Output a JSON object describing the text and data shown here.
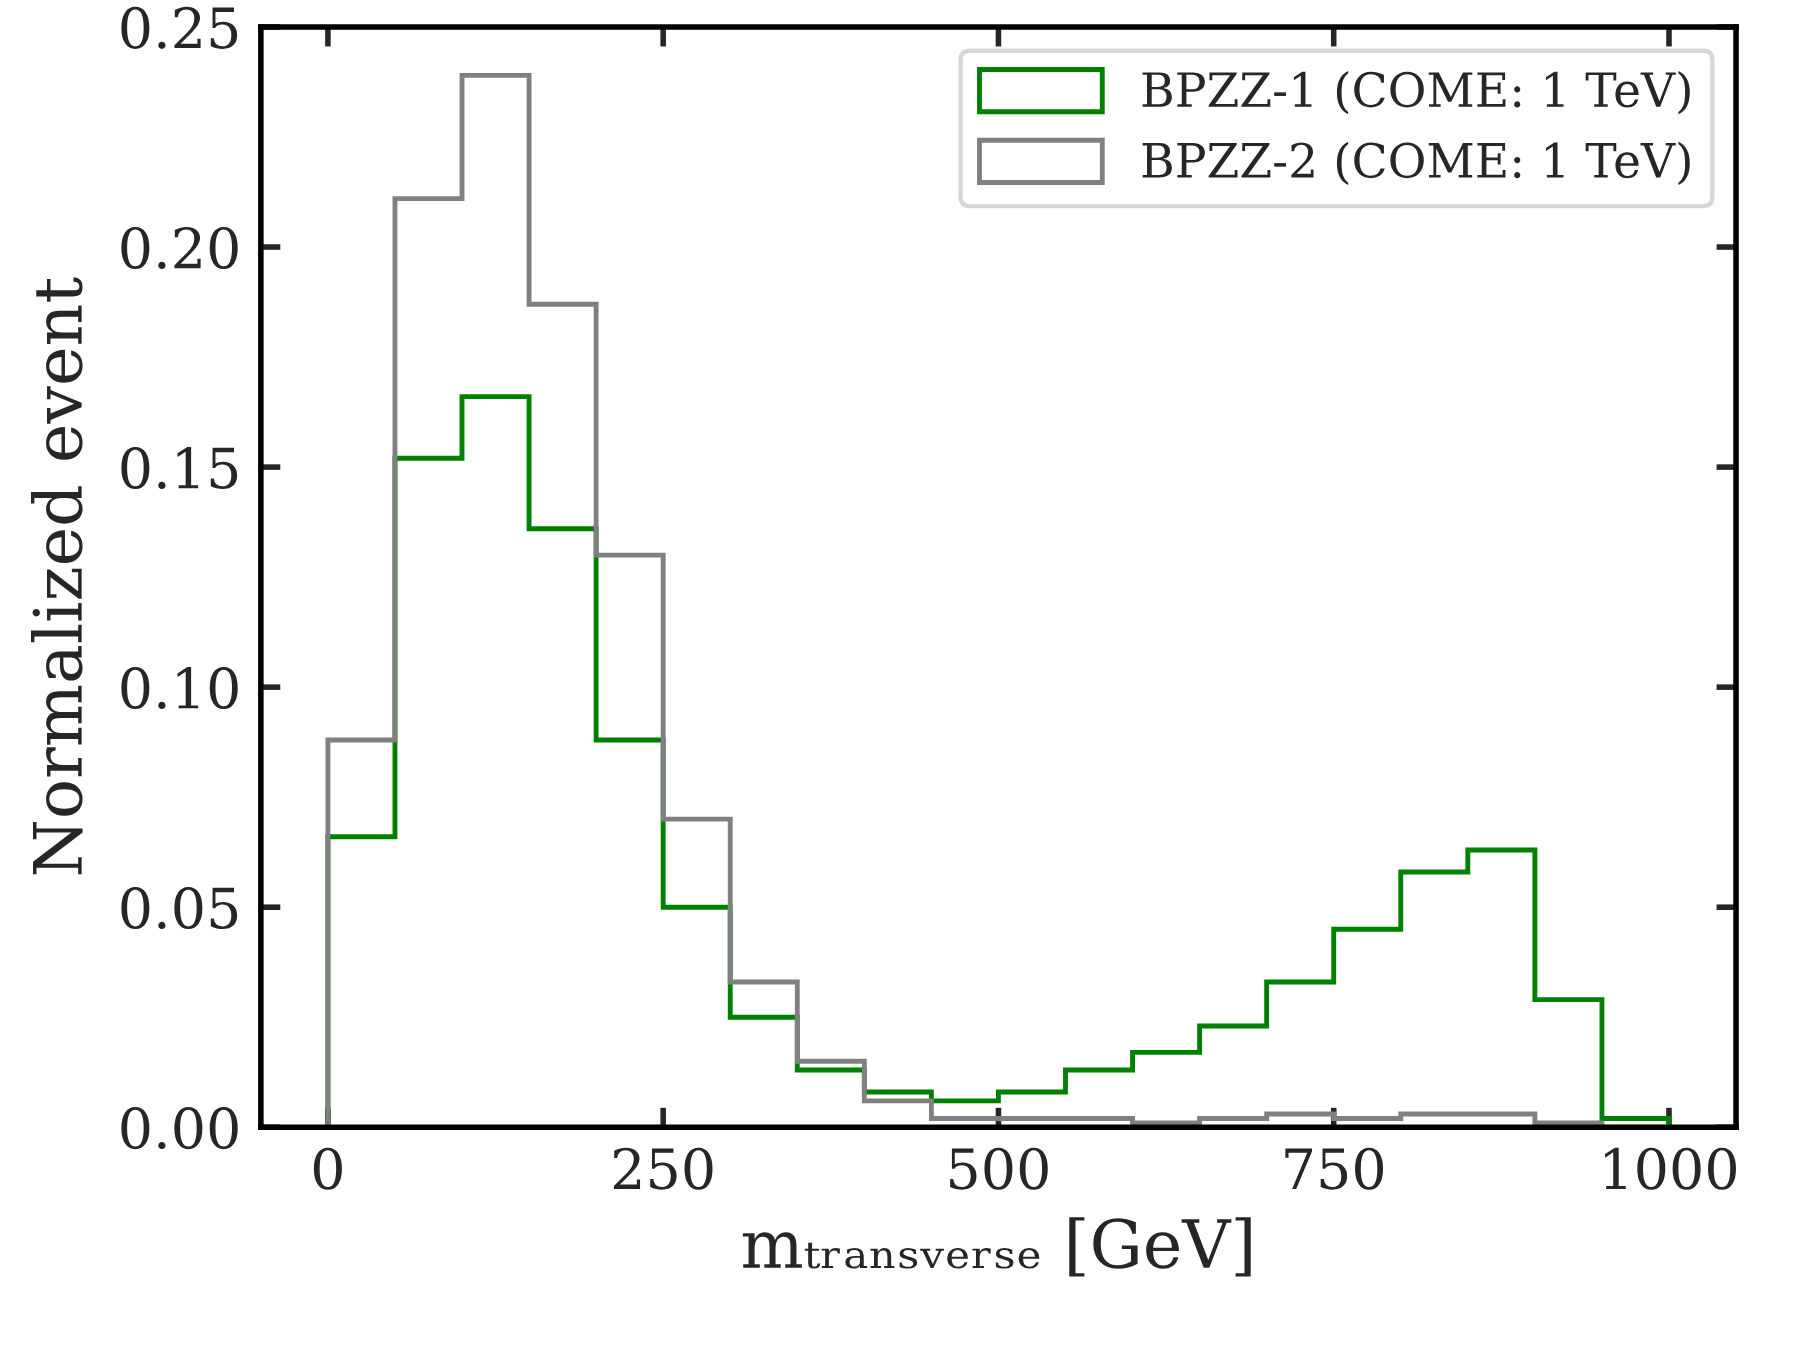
{
  "chart_data": {
    "type": "histogram",
    "xlabel": "mₜᵣₐₙₛᵥₑᵣₛₑ [GeV]",
    "ylabel": "Normalized event",
    "bins": [
      0,
      50,
      100,
      150,
      200,
      250,
      300,
      350,
      400,
      450,
      500,
      550,
      600,
      650,
      700,
      750,
      800,
      850,
      900,
      950,
      1000
    ],
    "series": [
      {
        "name": "BPZZ-1 (COME: 1 TeV)",
        "color": "#008000",
        "values": [
          0.066,
          0.152,
          0.166,
          0.136,
          0.088,
          0.05,
          0.025,
          0.013,
          0.008,
          0.006,
          0.008,
          0.013,
          0.017,
          0.023,
          0.033,
          0.045,
          0.058,
          0.063,
          0.029,
          0.002
        ]
      },
      {
        "name": "BPZZ-2 (COME: 1 TeV)",
        "color": "#808080",
        "values": [
          0.088,
          0.211,
          0.239,
          0.187,
          0.13,
          0.07,
          0.033,
          0.015,
          0.006,
          0.002,
          0.002,
          0.002,
          0.001,
          0.002,
          0.003,
          0.002,
          0.003,
          0.003,
          0.001,
          0.0
        ]
      }
    ],
    "xlim": [
      -50,
      1050
    ],
    "ylim": [
      0,
      0.25
    ],
    "xticks": [
      0,
      250,
      500,
      750,
      1000
    ],
    "yticks": [
      {
        "value": 0,
        "label": "0.00"
      },
      {
        "value": 0.05,
        "label": "0.05"
      },
      {
        "value": 0.1,
        "label": "0.10"
      },
      {
        "value": 0.15,
        "label": "0.15"
      },
      {
        "value": 0.2,
        "label": "0.20"
      },
      {
        "value": 0.25,
        "label": "0.25"
      }
    ],
    "legend": "top right",
    "grid": false
  }
}
